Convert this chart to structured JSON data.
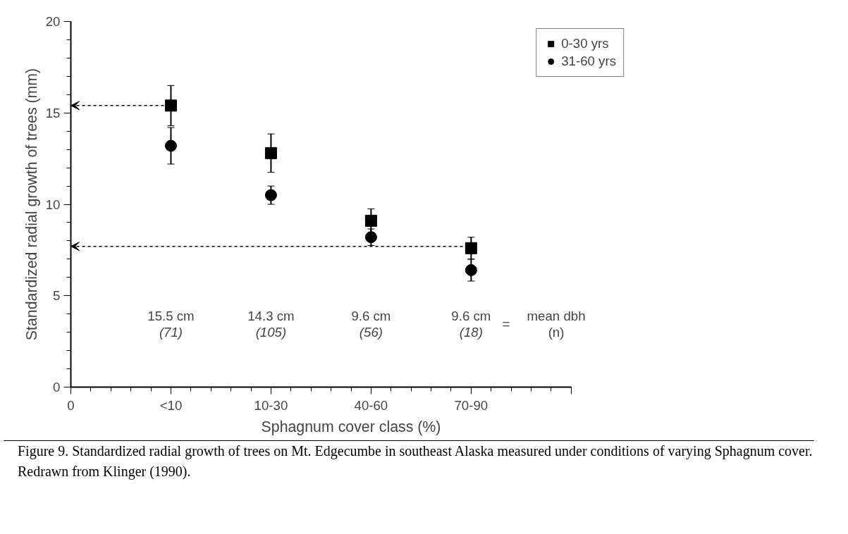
{
  "chart_data": {
    "type": "scatter",
    "ylabel": "Standardized radial growth of trees (mm)",
    "xlabel": "Sphagnum cover class (%)",
    "categories": [
      "0",
      "<10",
      "10-30",
      "40-60",
      "70-90",
      null
    ],
    "ylim": [
      0,
      20
    ],
    "yticks": [
      0,
      5,
      10,
      15,
      20
    ],
    "grid": false,
    "legend": "top right",
    "series": [
      {
        "name": "0-30 yrs",
        "color": "#000000",
        "marker": "square",
        "values": [
          null,
          15.4,
          12.8,
          9.1,
          7.6,
          null
        ],
        "errors": [
          null,
          1.1,
          1.05,
          0.65,
          0.6,
          null
        ]
      },
      {
        "name": "31-60 yrs",
        "color": "#000000",
        "marker": "circle",
        "values": [
          null,
          13.2,
          10.5,
          8.2,
          6.4,
          null
        ],
        "errors": [
          null,
          1.0,
          0.5,
          0.45,
          0.6,
          null
        ]
      },
      {
        "type": "line",
        "color": "#000000",
        "line_style": "dashed",
        "values": [
          15.4,
          15.4,
          null,
          null,
          null,
          null
        ]
      },
      {
        "type": "line",
        "color": "#000000",
        "line_style": "dashed",
        "values": [
          7.7,
          7.7,
          7.7,
          7.7,
          7.7,
          null
        ]
      }
    ],
    "annotations": [
      "15.5 cm",
      "(71)",
      "14.3 cm",
      "(105)",
      "9.6 cm",
      "(56)",
      "9.6 cm",
      "(18)",
      "=",
      "mean dbh",
      "(n)",
      "Figure 9. Standardized radial growth of trees on Mt. Edgecumbe in southeast Alaska measured under conditions of varying Sphagnum cover. Redrawn from Klinger (1990)."
    ]
  }
}
